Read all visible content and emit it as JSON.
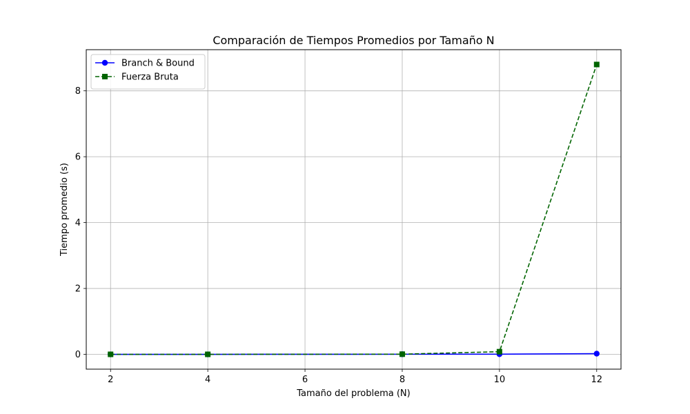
{
  "chart_data": {
    "type": "line",
    "title": "Comparación de Tiempos Promedios por Tamaño N",
    "xlabel": "Tamaño del problema (N)",
    "ylabel": "Tiempo promedio (s)",
    "xlim": [
      1.5,
      12.5
    ],
    "ylim": [
      -0.45,
      9.25
    ],
    "xticks": [
      2,
      4,
      6,
      8,
      10,
      12
    ],
    "yticks": [
      0,
      2,
      4,
      6,
      8
    ],
    "grid": true,
    "legend_position": "top-left",
    "series": [
      {
        "name": "Branch & Bound",
        "x": [
          2,
          4,
          8,
          10,
          12
        ],
        "y": [
          0.0,
          0.0,
          0.003,
          0.005,
          0.02
        ],
        "color": "#0000ff",
        "linestyle": "solid",
        "marker": "circle"
      },
      {
        "name": "Fuerza Bruta",
        "x": [
          2,
          4,
          8,
          10,
          12
        ],
        "y": [
          0.0,
          0.0,
          0.005,
          0.08,
          8.8
        ],
        "color": "#006400",
        "linestyle": "dashed",
        "marker": "square"
      }
    ]
  }
}
